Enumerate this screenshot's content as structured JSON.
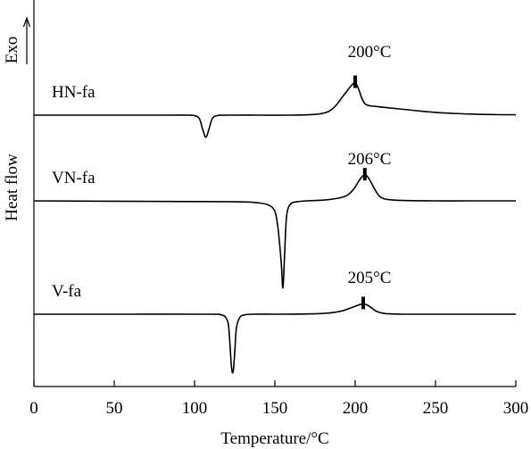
{
  "chart_data": {
    "type": "line",
    "xlabel": "Temperature/°C",
    "ylabel": "Heat flow",
    "exo_label": "Exo",
    "xlim": [
      0,
      300
    ],
    "xticks": [
      0,
      50,
      100,
      150,
      200,
      250,
      300
    ],
    "grid": false,
    "series": [
      {
        "name": "HN-fa",
        "peak_label": "200°C",
        "peak_temp": 200,
        "x": [
          0,
          80,
          95,
          100,
          103,
          105,
          107,
          109,
          111,
          114,
          120,
          140,
          160,
          175,
          182,
          186,
          189,
          192,
          195,
          198,
          200,
          202,
          204,
          206,
          208,
          212,
          220,
          230,
          240,
          250,
          260,
          270,
          280,
          290,
          300
        ],
        "y": [
          0.0,
          0.0,
          0.0,
          -0.2,
          -1.5,
          -6,
          -9.5,
          -6,
          -1.5,
          -0.2,
          0.0,
          0.0,
          0.0,
          0.3,
          1.2,
          2.8,
          5.0,
          7.8,
          10.5,
          13.0,
          14.0,
          11.5,
          7.5,
          5.0,
          4.2,
          3.8,
          3.2,
          2.5,
          1.8,
          1.2,
          0.8,
          0.5,
          0.3,
          0.2,
          0.2
        ]
      },
      {
        "name": "VN-fa",
        "peak_label": "206°C",
        "peak_temp": 206,
        "x": [
          0,
          50,
          100,
          130,
          140,
          146,
          150,
          152,
          154,
          155,
          156,
          157,
          158,
          160,
          163,
          170,
          180,
          190,
          195,
          198,
          200,
          202,
          204,
          206,
          208,
          210,
          212,
          214,
          216,
          220,
          230,
          250,
          270,
          300
        ],
        "y": [
          0.0,
          -0.1,
          -0.2,
          -0.3,
          -0.6,
          -1.2,
          -3,
          -8,
          -18,
          -25,
          -16,
          -6,
          -2.5,
          -0.8,
          -0.3,
          0.0,
          0.2,
          0.8,
          1.6,
          2.8,
          4.0,
          5.5,
          6.8,
          7.4,
          6.8,
          5.2,
          3.4,
          2.0,
          1.0,
          0.4,
          0.1,
          0.0,
          0.0,
          0.0
        ]
      },
      {
        "name": "V-fa",
        "peak_label": "205°C",
        "peak_temp": 205,
        "x": [
          0,
          60,
          110,
          116,
          119,
          121,
          122,
          123,
          124,
          125,
          126,
          128,
          131,
          136,
          150,
          170,
          185,
          192,
          196,
          200,
          203,
          205,
          207,
          209,
          211,
          213,
          216,
          220,
          230,
          260,
          300
        ],
        "y": [
          0.0,
          0.0,
          0.0,
          -0.2,
          -1.0,
          -4.0,
          -12,
          -22,
          -24,
          -16,
          -6,
          -1.5,
          -0.3,
          0.0,
          0.0,
          0.1,
          0.6,
          1.4,
          2.3,
          3.3,
          4.0,
          4.3,
          4.0,
          3.2,
          2.2,
          1.3,
          0.6,
          0.2,
          0.0,
          0.0,
          0.0
        ]
      }
    ]
  }
}
